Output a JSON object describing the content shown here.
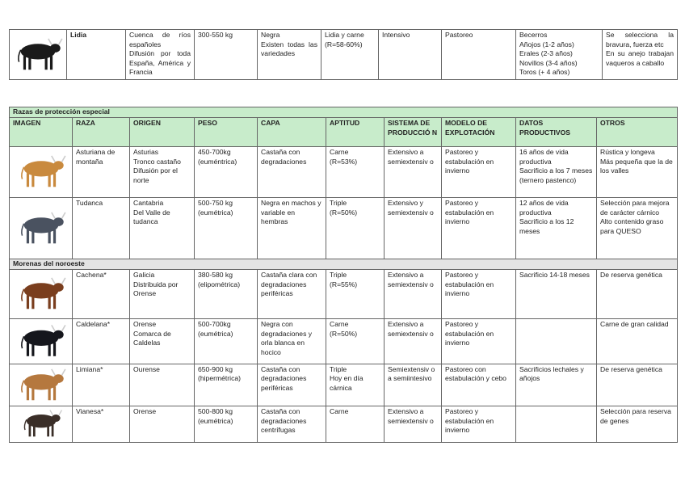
{
  "top_row": {
    "animal_color": "#1a1a1a",
    "cells": [
      "Lidia",
      "Cuenca de ríos españoles\nDifusión por toda España, América y Francia",
      "300-550 kg",
      "Negra\nExisten todas las variedades",
      "Lidia y carne (R=58-60%)",
      "Intensivo",
      "Pastoreo",
      "Becerros\nAñojos (1-2 años)\nErales (2-3 años)\nNovillos (3-4 años)\nToros (+ 4 años)",
      "Se selecciona la bravura, fuerza etc\nEn su anejo trabajan vaqueros a caballo"
    ]
  },
  "section_especial": {
    "title": "Razas de protección especial",
    "headers": [
      "IMAGEN",
      "RAZA",
      "ORIGEN",
      "PESO",
      "CAPA",
      "APTITUD",
      "SISTEMA DE PRODUCCIÓ N",
      "MODELO DE EXPLOTACIÓN",
      "DATOS PRODUCTIVOS",
      "OTROS"
    ],
    "rows": [
      {
        "animal_color": "#c98a3e",
        "cells": [
          "Asturiana de montaña",
          "Asturias\nTronco castaño\nDifusión por el norte",
          "450-700kg (euméntrica)",
          "Castaña con degradaciones",
          "Carne\n(R=53%)",
          "Extensivo a semiextensiv o",
          "Pastoreo y estabulación en invierno",
          "16 años de vida productiva\nSacrificio a los 7 meses (ternero pastenco)",
          "Rústica y longeva\nMás pequeña que la de los valles"
        ]
      },
      {
        "animal_color": "#4a5260",
        "cells": [
          "Tudanca",
          "Cantabria\nDel Valle de tudanca",
          "500-750 kg (eumétrica)",
          "Negra en machos y variable en hembras",
          "Triple\n(R=50%)",
          "Extensivo y semiextensiv o",
          "Pastoreo y estabulación en invierno",
          "12 años de vida productiva\nSacrificio a los 12 meses",
          "Selección para mejora de carácter cárnico\nAlto contenido graso para QUESO"
        ]
      }
    ]
  },
  "section_morenas": {
    "title": "Morenas del noroeste",
    "rows": [
      {
        "animal_color": "#7a3e1e",
        "cells": [
          "Cachena*",
          "Galicia\nDistribuida por Orense",
          "380-580 kg (elipométrica)",
          "Castaña clara con degradaciones periféricas",
          "Triple\n(R=55%)",
          "Extensivo a semiextensiv o",
          "Pastoreo y estabulación en invierno",
          "Sacrificio 14-18 meses",
          "De reserva genética"
        ]
      },
      {
        "animal_color": "#15161c",
        "cells": [
          "Caldelana*",
          "Orense\nComarca de Caldelas",
          "500-700kg (eumétrica)",
          "Negra con degradaciones y orla blanca en hocico",
          "Carne\n(R=50%)",
          "Extensivo a semiextensiv o",
          "Pastoreo y estabulación en invierno",
          "",
          "Carne de gran calidad"
        ]
      },
      {
        "animal_color": "#b5783e",
        "cells": [
          "Limiana*",
          "Ourense",
          "650-900 kg (hipermétrica)",
          "Castaña con degradaciones periféricas",
          "Triple\nHoy en día cárnica",
          "Semiextensiv o a semiintesivo",
          "Pastoreo con estabulación y cebo",
          "Sacrificios lechales y añojos",
          "De reserva genética"
        ]
      },
      {
        "animal_color": "#3a2e28",
        "cells": [
          "Vianesa*",
          "Orense",
          "500-800 kg (eumétrica)",
          "Castaña con degradaciones centrífugas",
          "Carne",
          "Extensivo a semiextensiv o",
          "Pastoreo y estabulación en invierno",
          "",
          "Selección para reserva de genes"
        ]
      }
    ]
  }
}
